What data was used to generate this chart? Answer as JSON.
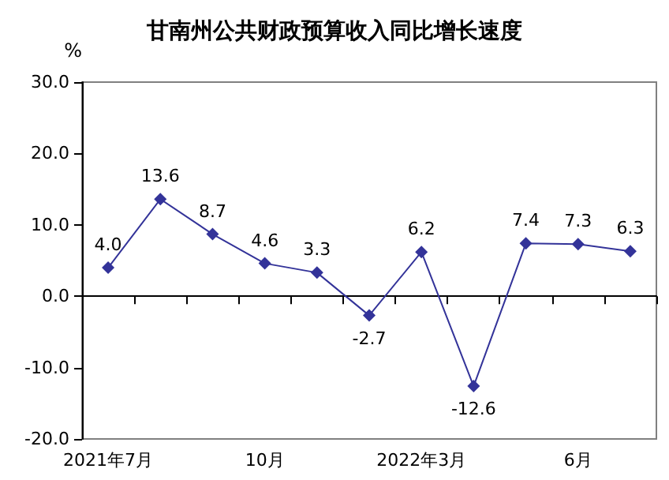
{
  "chart_data": {
    "type": "line",
    "title": "甘南州公共财政预算收入同比增长速度",
    "ylabel": "%",
    "categories": [
      "2021年7月",
      null,
      null,
      "10月",
      null,
      null,
      "2022年3月",
      null,
      null,
      "6月",
      null
    ],
    "series": [
      {
        "color": "#333399",
        "values": [
          4.0,
          13.6,
          8.7,
          4.6,
          3.3,
          -2.7,
          6.2,
          -12.6,
          7.4,
          7.3,
          6.3
        ],
        "value_labels": [
          "4.0",
          "13.6",
          "8.7",
          "4.6",
          "3.3",
          "-2.7",
          "6.2",
          "-12.6",
          "7.4",
          "7.3",
          "6.3"
        ]
      }
    ],
    "ylim": [
      -20,
      30
    ],
    "yticks": [
      {
        "value": -20,
        "label": "-20.0"
      },
      {
        "value": -10,
        "label": "-10.0"
      },
      {
        "value": 0,
        "label": "0.0"
      },
      {
        "value": 10,
        "label": "10.0"
      },
      {
        "value": 20,
        "label": "20.0"
      },
      {
        "value": 30,
        "label": "30.0"
      }
    ],
    "marker": "diamond",
    "line_style": "solid"
  }
}
